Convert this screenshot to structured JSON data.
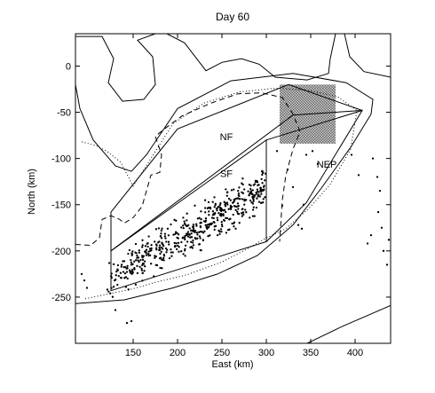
{
  "chart_data": {
    "type": "scatter",
    "title": "Day 60",
    "xlabel": "East (km)",
    "ylabel": "North (km)",
    "xlim": [
      85,
      440
    ],
    "ylim": [
      -300,
      35
    ],
    "xticks": [
      150,
      200,
      250,
      300,
      350,
      400
    ],
    "yticks": [
      0,
      -50,
      -100,
      -150,
      -200,
      -250
    ],
    "grid": false,
    "legend": "none",
    "region_labels": [
      {
        "text": "NF",
        "x": 255,
        "y": -80
      },
      {
        "text": "SF",
        "x": 255,
        "y": -120
      },
      {
        "text": "NEP",
        "x": 368,
        "y": -110
      }
    ],
    "regions": [
      {
        "name": "NF",
        "vertices": [
          [
            125,
            -158
          ],
          [
            200,
            -68
          ],
          [
            325,
            -20
          ],
          [
            408,
            -48
          ],
          [
            330,
            -53
          ],
          [
            125,
            -200
          ]
        ]
      },
      {
        "name": "SF",
        "vertices": [
          [
            125,
            -200
          ],
          [
            300,
            -80
          ],
          [
            300,
            -190
          ],
          [
            125,
            -243
          ]
        ]
      },
      {
        "name": "NEP",
        "vertices": [
          [
            300,
            -80
          ],
          [
            408,
            -48
          ],
          [
            345,
            -148
          ],
          [
            300,
            -190
          ]
        ]
      }
    ],
    "shaded_box": {
      "x": [
        315,
        378
      ],
      "y": [
        -84,
        -20
      ]
    },
    "coastline_segments": [
      [
        [
          85,
          -257
        ],
        [
          140,
          -253
        ],
        [
          195,
          -240
        ],
        [
          245,
          -225
        ],
        [
          290,
          -205
        ],
        [
          330,
          -172
        ],
        [
          362,
          -132
        ],
        [
          395,
          -88
        ],
        [
          418,
          -52
        ],
        [
          420,
          -36
        ],
        [
          390,
          -18
        ],
        [
          330,
          -8
        ],
        [
          260,
          -16
        ],
        [
          200,
          -46
        ],
        [
          165,
          -96
        ],
        [
          148,
          -114
        ],
        [
          130,
          -108
        ],
        [
          105,
          -80
        ],
        [
          90,
          -46
        ],
        [
          85,
          -20
        ]
      ],
      [
        [
          85,
          32
        ],
        [
          115,
          32
        ],
        [
          128,
          8
        ],
        [
          122,
          -18
        ],
        [
          138,
          -38
        ],
        [
          162,
          -36
        ],
        [
          175,
          -20
        ],
        [
          172,
          10
        ],
        [
          155,
          28
        ],
        [
          175,
          35
        ]
      ],
      [
        [
          188,
          35
        ],
        [
          208,
          25
        ],
        [
          224,
          5
        ],
        [
          232,
          -5
        ],
        [
          250,
          4
        ],
        [
          272,
          8
        ],
        [
          292,
          2
        ],
        [
          310,
          -12
        ],
        [
          346,
          -15
        ],
        [
          370,
          -8
        ],
        [
          372,
          8
        ],
        [
          378,
          35
        ]
      ],
      [
        [
          388,
          35
        ],
        [
          394,
          10
        ],
        [
          410,
          -6
        ],
        [
          440,
          -12
        ]
      ],
      [
        [
          346,
          -300
        ],
        [
          385,
          -282
        ],
        [
          440,
          -259
        ]
      ]
    ],
    "dashed_line": [
      [
        85,
        -193
      ],
      [
        102,
        -194
      ],
      [
        112,
        -186
      ],
      [
        115,
        -166
      ],
      [
        125,
        -162
      ],
      [
        135,
        -166
      ],
      [
        140,
        -170
      ],
      [
        150,
        -164
      ],
      [
        160,
        -152
      ],
      [
        170,
        -118
      ],
      [
        180,
        -115
      ],
      [
        182,
        -96
      ],
      [
        175,
        -76
      ],
      [
        188,
        -66
      ],
      [
        205,
        -54
      ],
      [
        238,
        -40
      ],
      [
        268,
        -30
      ],
      [
        295,
        -29
      ],
      [
        318,
        -34
      ],
      [
        330,
        -52
      ],
      [
        338,
        -71
      ],
      [
        330,
        -90
      ],
      [
        322,
        -118
      ],
      [
        318,
        -145
      ],
      [
        315,
        -190
      ]
    ],
    "dotted_line": [
      [
        92,
        -82
      ],
      [
        108,
        -86
      ],
      [
        120,
        -92
      ],
      [
        136,
        -104
      ],
      [
        150,
        -130
      ],
      [
        170,
        -100
      ],
      [
        195,
        -62
      ],
      [
        230,
        -40
      ],
      [
        270,
        -28
      ],
      [
        310,
        -24
      ],
      [
        345,
        -26
      ],
      [
        380,
        -33
      ],
      [
        402,
        -48
      ],
      [
        395,
        -90
      ],
      [
        372,
        -128
      ],
      [
        348,
        -154
      ],
      [
        322,
        -176
      ],
      [
        300,
        -186
      ],
      [
        278,
        -198
      ],
      [
        250,
        -212
      ],
      [
        210,
        -226
      ],
      [
        175,
        -234
      ],
      [
        150,
        -241
      ],
      [
        125,
        -246
      ],
      [
        95,
        -252
      ]
    ],
    "scatter": {
      "band": {
        "x_range": [
          120,
          300
        ],
        "y_at_x0": -232,
        "slope": 0.56,
        "spread": 15,
        "count": 520
      },
      "extra_points": [
        [
          92,
          -225
        ],
        [
          95,
          -232
        ],
        [
          98,
          -240
        ],
        [
          130,
          -264
        ],
        [
          143,
          -278
        ],
        [
          148,
          -276
        ],
        [
          420,
          -100
        ],
        [
          425,
          -120
        ],
        [
          428,
          -135
        ],
        [
          430,
          -175
        ],
        [
          432,
          -200
        ],
        [
          436,
          -215
        ],
        [
          426,
          -158
        ],
        [
          438,
          -188
        ],
        [
          414,
          -192
        ],
        [
          418,
          -183
        ],
        [
          318,
          -151
        ],
        [
          330,
          -131
        ],
        [
          342,
          -150
        ],
        [
          345,
          -96
        ],
        [
          352,
          -92
        ],
        [
          358,
          -106
        ],
        [
          396,
          -96
        ],
        [
          404,
          -118
        ],
        [
          312,
          -92
        ],
        [
          324,
          -112
        ],
        [
          340,
          -176
        ],
        [
          336,
          -172
        ]
      ]
    }
  }
}
